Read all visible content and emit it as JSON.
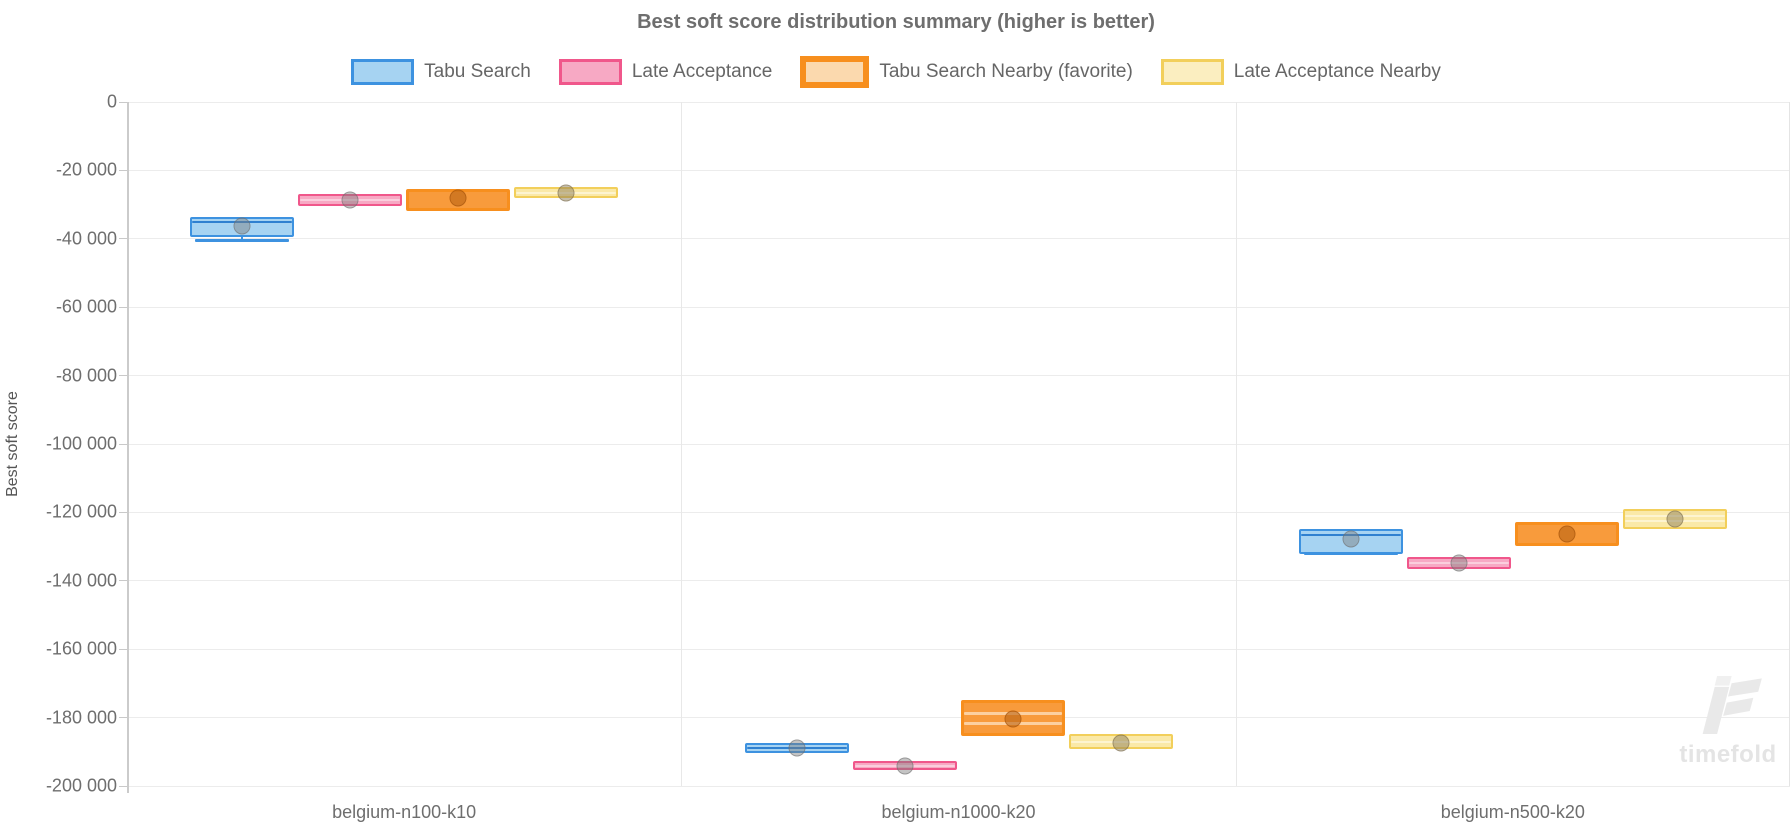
{
  "chart_data": {
    "type": "boxplot",
    "title": "Best soft score distribution summary (higher is better)",
    "ylabel": "Best soft score",
    "ylim": [
      -200000,
      0
    ],
    "grid": true,
    "legend_position": "top",
    "ytick_values": [
      0,
      -20000,
      -40000,
      -60000,
      -80000,
      -100000,
      -120000,
      -140000,
      -160000,
      -180000,
      -200000
    ],
    "ytick_labels": [
      "0",
      "-20 000",
      "-40 000",
      "-60 000",
      "-80 000",
      "-100 000",
      "-120 000",
      "-140 000",
      "-160 000",
      "-180 000",
      "-200 000"
    ],
    "categories": [
      "belgium-n100-k10",
      "belgium-n1000-k20",
      "belgium-n500-k20"
    ],
    "series": [
      {
        "name": "Tabu Search",
        "fill": "#a6d3f2",
        "border": "#3d92e0",
        "border_width": 2,
        "legend_border_width": 3,
        "inner_line": "#2f80d0",
        "mean_dot": "rgba(125,125,125,0.45)",
        "mean_dot_border": "rgba(105,105,105,0.5)"
      },
      {
        "name": "Late Acceptance",
        "fill": "#f7a9c4",
        "border": "#f0578b",
        "border_width": 2,
        "legend_border_width": 3,
        "inner_line": "#fbcedd",
        "mean_dot": "rgba(125,125,125,0.45)",
        "mean_dot_border": "rgba(105,105,105,0.5)"
      },
      {
        "name": "Tabu Search Nearby (favorite)",
        "fill": "#f89b3c",
        "border": "#f78f1e",
        "border_width": 3,
        "legend_border_width": 6,
        "legend_fill": "#fbd9ae",
        "inner_line": "#fcd0a0",
        "mean_dot": "rgba(185,98,18,0.6)",
        "mean_dot_border": "rgba(160,80,10,0.55)"
      },
      {
        "name": "Late Acceptance Nearby",
        "fill": "#fae9a8",
        "border": "#f2cf5b",
        "border_width": 2,
        "legend_border_width": 3,
        "legend_fill": "#fbeec0",
        "inner_line": "#fdf4d0",
        "mean_dot": "rgba(140,125,90,0.5)",
        "mean_dot_border": "rgba(120,105,75,0.5)"
      }
    ],
    "groups": [
      {
        "category": "belgium-n100-k10",
        "boxes": [
          {
            "high": -34200,
            "low": -39000,
            "lines": [
              -35200
            ],
            "mean": -36300,
            "whisker": -40400
          },
          {
            "high": -27400,
            "low": -29900,
            "lines": [
              -28700
            ],
            "mean": -28700,
            "whisker": null
          },
          {
            "high": -26200,
            "low": -30900,
            "lines": [],
            "mean": -28200,
            "whisker": null
          },
          {
            "high": -25500,
            "low": -27400,
            "lines": [
              -26500
            ],
            "mean": -26500,
            "whisker": null
          }
        ]
      },
      {
        "category": "belgium-n1000-k20",
        "boxes": [
          {
            "high": -188000,
            "low": -189700,
            "lines": [
              -188800
            ],
            "mean": -188800,
            "whisker": null
          },
          {
            "high": -193400,
            "low": -194800,
            "lines": [
              -194100
            ],
            "mean": -194100,
            "whisker": null
          },
          {
            "high": -175600,
            "low": -184400,
            "lines": [
              -178700,
              -181700
            ],
            "mean": -180400,
            "whisker": null
          },
          {
            "high": -185400,
            "low": -188500,
            "lines": [
              -187000
            ],
            "mean": -187300,
            "whisker": null
          }
        ]
      },
      {
        "category": "belgium-n500-k20",
        "boxes": [
          {
            "high": -125400,
            "low": -131500,
            "lines": [
              -126600
            ],
            "mean": -127900,
            "whisker": -132000
          },
          {
            "high": -133700,
            "low": -135900,
            "lines": [
              -134800
            ],
            "mean": -134900,
            "whisker": null
          },
          {
            "high": -123700,
            "low": -128900,
            "lines": [],
            "mean": -126300,
            "whisker": null
          },
          {
            "high": -119600,
            "low": -124200,
            "lines": [
              -121100,
              -122400
            ],
            "mean": -122000,
            "whisker": null
          }
        ]
      }
    ]
  },
  "watermark": {
    "text": "timefold"
  }
}
